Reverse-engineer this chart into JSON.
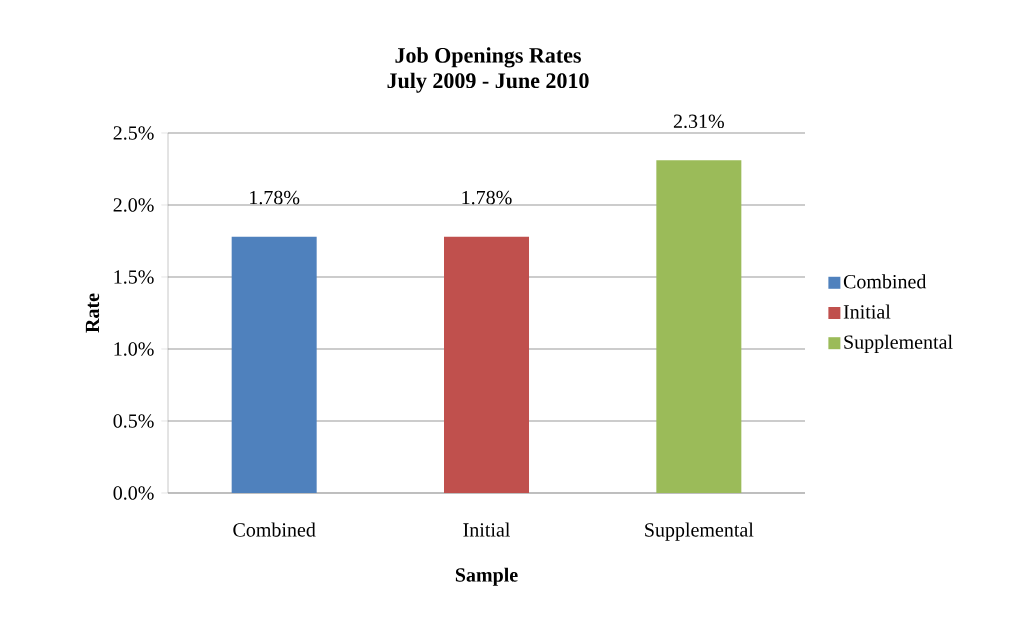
{
  "chart_data": {
    "type": "bar",
    "title": "Job Openings Rates",
    "subtitle": "July 2009 - June 2010",
    "xlabel": "Sample",
    "ylabel": "Rate",
    "categories": [
      "Combined",
      "Initial",
      "Supplemental"
    ],
    "series": [
      {
        "name": "Combined",
        "color": "#4f81bd",
        "values": [
          1.78,
          null,
          null
        ],
        "value_labels": [
          "1.78%",
          null,
          null
        ]
      },
      {
        "name": "Initial",
        "color": "#c0504d",
        "values": [
          null,
          1.78,
          null
        ],
        "value_labels": [
          null,
          "1.78%",
          null
        ]
      },
      {
        "name": "Supplemental",
        "color": "#9bbb59",
        "values": [
          null,
          null,
          2.31
        ],
        "value_labels": [
          null,
          null,
          "2.31%"
        ]
      }
    ],
    "ylim": [
      0,
      2.5
    ],
    "yticks": [
      {
        "value": 0,
        "label": "0.0%"
      },
      {
        "value": 0.5,
        "label": "0.5%"
      },
      {
        "value": 1,
        "label": "1.0%"
      },
      {
        "value": 1.5,
        "label": "1.5%"
      },
      {
        "value": 2,
        "label": "2.0%"
      },
      {
        "value": 2.5,
        "label": "2.5%"
      }
    ],
    "grid": "y",
    "legend": "right"
  }
}
